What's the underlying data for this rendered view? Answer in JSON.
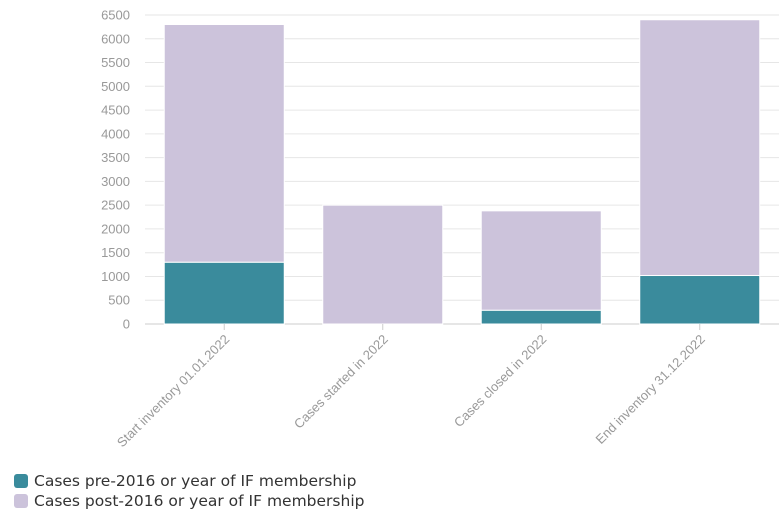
{
  "chart_data": {
    "type": "bar",
    "stacked": true,
    "categories": [
      "Start inventory 01.01.2022",
      "Cases started in 2022",
      "Cases closed in 2022",
      "End inventory 31.12.2022"
    ],
    "series": [
      {
        "name": "Cases pre-2016 or year of IF membership",
        "color": "#3a8b9c",
        "values": [
          1300,
          0,
          290,
          1020
        ]
      },
      {
        "name": "Cases post-2016 or year of IF membership",
        "color": "#ccc3db",
        "values": [
          5000,
          2500,
          2090,
          5380
        ]
      }
    ],
    "ylim": [
      0,
      6500
    ],
    "yticks": [
      0,
      500,
      1000,
      1500,
      2000,
      2500,
      3000,
      3500,
      4000,
      4500,
      5000,
      5500,
      6000,
      6500
    ],
    "grid": true,
    "legend_position": "bottom-left"
  }
}
